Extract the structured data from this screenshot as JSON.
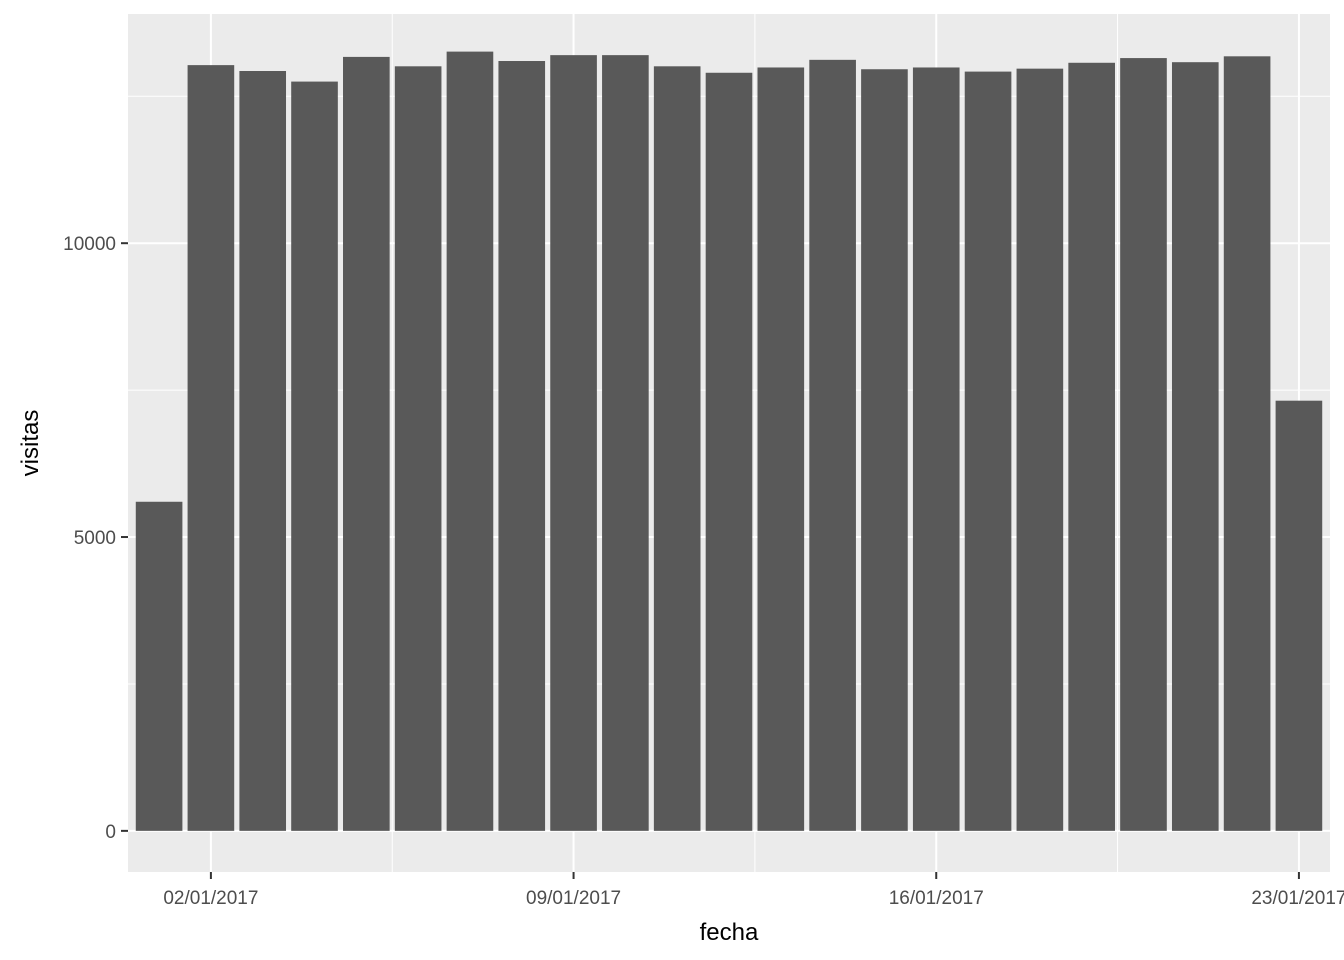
{
  "chart_data": {
    "type": "bar",
    "title": "",
    "xlabel": "fecha",
    "ylabel": "visitas",
    "x": [
      "01/01/2017",
      "02/01/2017",
      "03/01/2017",
      "04/01/2017",
      "05/01/2017",
      "06/01/2017",
      "07/01/2017",
      "08/01/2017",
      "09/01/2017",
      "10/01/2017",
      "11/01/2017",
      "12/01/2017",
      "13/01/2017",
      "14/01/2017",
      "15/01/2017",
      "16/01/2017",
      "17/01/2017",
      "18/01/2017",
      "19/01/2017",
      "20/01/2017",
      "21/01/2017",
      "22/01/2017",
      "23/01/2017"
    ],
    "values": [
      5600,
      13030,
      12930,
      12750,
      13170,
      13010,
      13260,
      13100,
      13200,
      13200,
      13010,
      12900,
      12990,
      13120,
      12960,
      12990,
      12920,
      12970,
      13070,
      13150,
      13080,
      13180,
      7320
    ],
    "xticks": [
      "02/01/2017",
      "09/01/2017",
      "16/01/2017",
      "23/01/2017"
    ],
    "yticks": [
      0,
      5000,
      10000
    ],
    "ylim": [
      -700,
      13900
    ],
    "grid": true,
    "bar_color": "#595959",
    "panel_color": "#ebebeb",
    "grid_color": "#ffffff"
  }
}
